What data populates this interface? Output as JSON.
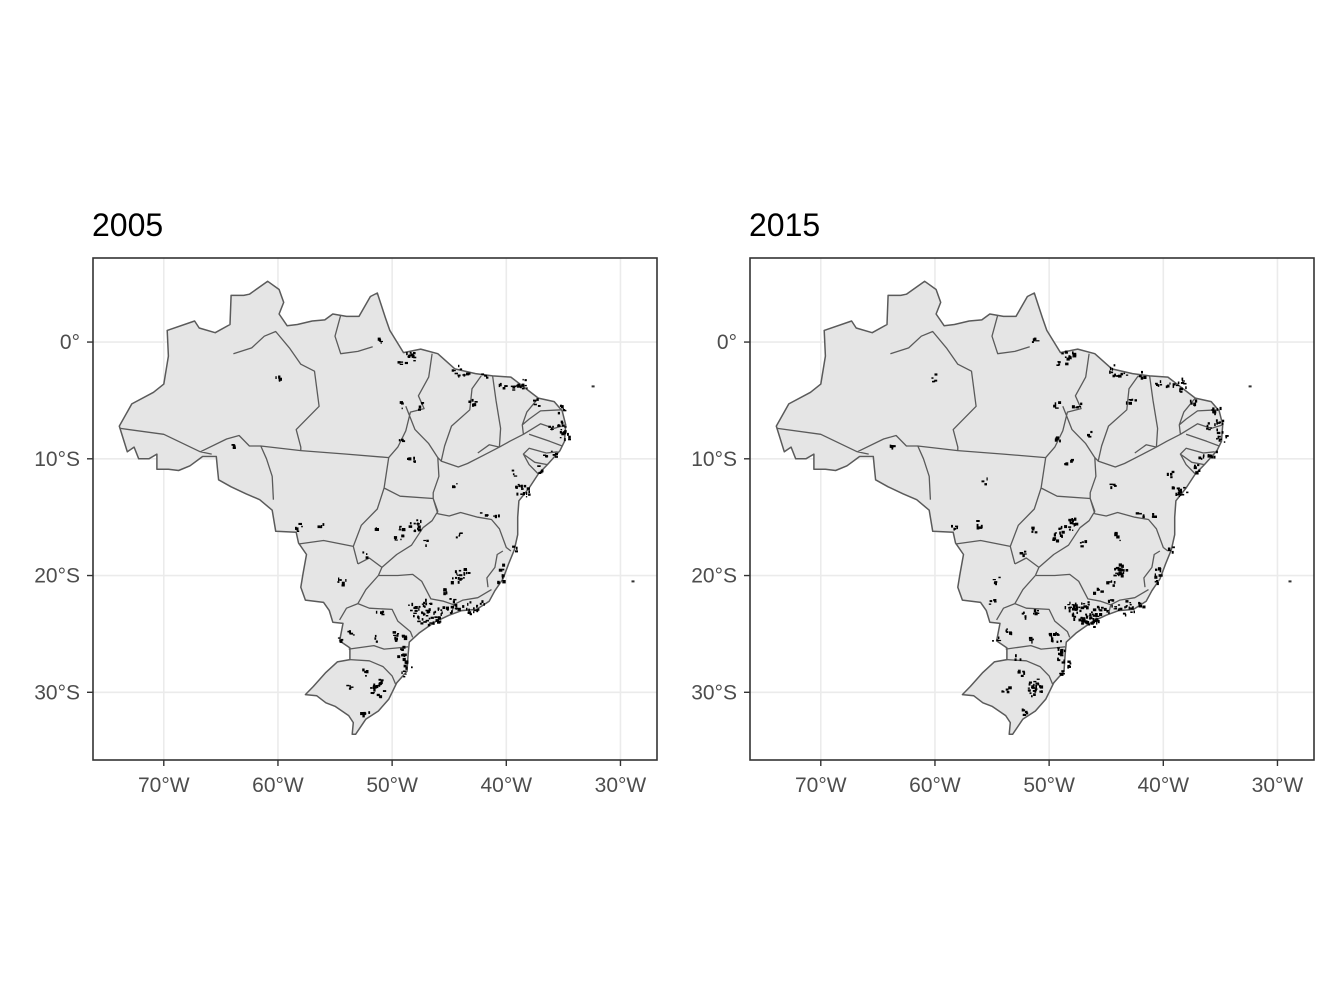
{
  "panels": [
    {
      "id": "2005",
      "title": "2005",
      "x_ticks": [
        {
          "lon": -70,
          "label": "70°W"
        },
        {
          "lon": -60,
          "label": "60°W"
        },
        {
          "lon": -50,
          "label": "50°W"
        },
        {
          "lon": -40,
          "label": "40°W"
        },
        {
          "lon": -30,
          "label": "30°W"
        }
      ],
      "y_ticks": [
        {
          "lat": 0,
          "label": "0°"
        },
        {
          "lat": -10,
          "label": "10°S"
        },
        {
          "lat": -20,
          "label": "20°S"
        },
        {
          "lat": -30,
          "label": "30°S"
        }
      ],
      "xlim": [
        -76.2,
        -26.8
      ],
      "ylim": [
        -35.8,
        7.2
      ],
      "clusters": [
        [
          -58.2,
          -15.9,
          0.5
        ],
        [
          -56.3,
          -15.6,
          0.4
        ],
        [
          -54.6,
          -20.4,
          0.4
        ],
        [
          -54.2,
          -20.6,
          0.3
        ],
        [
          -49.3,
          -16.7,
          0.8
        ],
        [
          -49.0,
          -16.0,
          0.5
        ],
        [
          -48.0,
          -15.8,
          1.0
        ],
        [
          -47.8,
          -15.6,
          0.6
        ],
        [
          -51.2,
          -16.1,
          0.3
        ],
        [
          -52.3,
          -18.2,
          0.3
        ],
        [
          -47.0,
          -17.2,
          0.3
        ],
        [
          -44.0,
          -16.7,
          0.4
        ],
        [
          -44.0,
          -19.9,
          1.1
        ],
        [
          -43.6,
          -19.6,
          0.6
        ],
        [
          -44.5,
          -20.5,
          0.4
        ],
        [
          -45.5,
          -21.5,
          0.5
        ],
        [
          -46.6,
          -23.5,
          1.6
        ],
        [
          -47.2,
          -23.6,
          1.0
        ],
        [
          -46.2,
          -23.9,
          1.0
        ],
        [
          -47.8,
          -23.2,
          0.7
        ],
        [
          -48.2,
          -22.7,
          0.5
        ],
        [
          -47.5,
          -22.5,
          0.6
        ],
        [
          -46.8,
          -22.3,
          0.4
        ],
        [
          -45.7,
          -23.1,
          0.7
        ],
        [
          -45.0,
          -22.9,
          0.5
        ],
        [
          -44.2,
          -22.6,
          0.5
        ],
        [
          -43.3,
          -22.8,
          1.1
        ],
        [
          -42.7,
          -22.8,
          0.6
        ],
        [
          -41.9,
          -22.4,
          0.4
        ],
        [
          -40.4,
          -20.3,
          0.7
        ],
        [
          -40.3,
          -19.4,
          0.3
        ],
        [
          -49.3,
          -25.4,
          0.9
        ],
        [
          -49.6,
          -25.1,
          0.4
        ],
        [
          -51.4,
          -25.4,
          0.3
        ],
        [
          -53.5,
          -24.9,
          0.4
        ],
        [
          -51.1,
          -23.3,
          0.5
        ],
        [
          -49.0,
          -26.5,
          0.6
        ],
        [
          -48.6,
          -27.6,
          0.7
        ],
        [
          -49.1,
          -26.9,
          0.5
        ],
        [
          -48.9,
          -28.5,
          0.4
        ],
        [
          -51.2,
          -29.9,
          1.2
        ],
        [
          -51.2,
          -29.2,
          0.7
        ],
        [
          -51.6,
          -29.7,
          0.6
        ],
        [
          -52.4,
          -28.3,
          0.4
        ],
        [
          -53.8,
          -29.7,
          0.4
        ],
        [
          -52.3,
          -31.8,
          0.5
        ],
        [
          -54.6,
          -25.5,
          0.3
        ],
        [
          -38.5,
          -12.9,
          1.1
        ],
        [
          -38.9,
          -12.3,
          0.5
        ],
        [
          -39.4,
          -11.3,
          0.3
        ],
        [
          -37.1,
          -10.9,
          0.5
        ],
        [
          -35.7,
          -9.6,
          0.6
        ],
        [
          -34.9,
          -8.1,
          1.0
        ],
        [
          -35.0,
          -7.1,
          0.8
        ],
        [
          -35.9,
          -7.2,
          0.4
        ],
        [
          -35.2,
          -5.8,
          0.7
        ],
        [
          -37.3,
          -5.2,
          0.4
        ],
        [
          -38.5,
          -3.7,
          1.0
        ],
        [
          -39.3,
          -3.9,
          0.5
        ],
        [
          -40.3,
          -3.7,
          0.4
        ],
        [
          -44.3,
          -2.5,
          0.8
        ],
        [
          -43.5,
          -2.9,
          0.4
        ],
        [
          -42.8,
          -5.1,
          0.6
        ],
        [
          -41.8,
          -2.9,
          0.3
        ],
        [
          -48.5,
          -1.4,
          0.9
        ],
        [
          -48.0,
          -1.2,
          0.4
        ],
        [
          -49.2,
          -1.9,
          0.3
        ],
        [
          -51.1,
          0.0,
          0.4
        ],
        [
          -47.5,
          -5.5,
          0.4
        ],
        [
          -48.3,
          -10.2,
          0.5
        ],
        [
          -49.3,
          -8.5,
          0.3
        ],
        [
          -44.5,
          -12.2,
          0.3
        ],
        [
          -36.6,
          -9.8,
          0.3
        ],
        [
          -42.0,
          -14.8,
          0.3
        ],
        [
          -40.9,
          -14.8,
          0.3
        ],
        [
          -39.3,
          -17.8,
          0.3
        ],
        [
          -60.0,
          -3.1,
          0.4
        ],
        [
          -63.9,
          -8.8,
          0.3
        ],
        [
          -49.2,
          -5.4,
          0.3
        ],
        [
          -44.6,
          -22.0,
          0.3
        ]
      ]
    },
    {
      "id": "2015",
      "title": "2015",
      "x_ticks": [
        {
          "lon": -70,
          "label": "70°W"
        },
        {
          "lon": -60,
          "label": "60°W"
        },
        {
          "lon": -50,
          "label": "50°W"
        },
        {
          "lon": -40,
          "label": "40°W"
        },
        {
          "lon": -30,
          "label": "30°W"
        }
      ],
      "y_ticks": [
        {
          "lat": 0,
          "label": "0°"
        },
        {
          "lat": -10,
          "label": "10°S"
        },
        {
          "lat": -20,
          "label": "20°S"
        },
        {
          "lat": -30,
          "label": "30°S"
        }
      ],
      "xlim": [
        -76.2,
        -26.8
      ],
      "ylim": [
        -35.8,
        7.2
      ],
      "clusters": [
        [
          -58.2,
          -15.9,
          0.5
        ],
        [
          -56.1,
          -15.6,
          0.5
        ],
        [
          -54.6,
          -20.4,
          0.5
        ],
        [
          -55.0,
          -22.3,
          0.4
        ],
        [
          -49.3,
          -16.7,
          0.9
        ],
        [
          -49.0,
          -16.0,
          0.6
        ],
        [
          -48.0,
          -15.8,
          1.1
        ],
        [
          -47.8,
          -15.4,
          0.7
        ],
        [
          -51.2,
          -16.1,
          0.4
        ],
        [
          -52.3,
          -18.2,
          0.4
        ],
        [
          -47.0,
          -17.2,
          0.4
        ],
        [
          -44.0,
          -16.7,
          0.5
        ],
        [
          -44.0,
          -19.9,
          1.3
        ],
        [
          -43.6,
          -19.5,
          0.7
        ],
        [
          -44.6,
          -20.7,
          0.6
        ],
        [
          -45.7,
          -21.3,
          0.6
        ],
        [
          -46.6,
          -23.5,
          1.9
        ],
        [
          -47.2,
          -23.6,
          1.2
        ],
        [
          -46.2,
          -23.9,
          1.1
        ],
        [
          -47.8,
          -23.2,
          0.9
        ],
        [
          -48.2,
          -22.7,
          0.7
        ],
        [
          -47.5,
          -22.6,
          0.8
        ],
        [
          -46.8,
          -22.3,
          0.6
        ],
        [
          -45.7,
          -23.1,
          0.8
        ],
        [
          -45.0,
          -22.9,
          0.6
        ],
        [
          -44.2,
          -22.6,
          0.6
        ],
        [
          -43.3,
          -22.8,
          1.3
        ],
        [
          -42.7,
          -22.8,
          0.7
        ],
        [
          -41.9,
          -22.4,
          0.5
        ],
        [
          -40.4,
          -20.3,
          0.8
        ],
        [
          -40.3,
          -19.4,
          0.4
        ],
        [
          -49.3,
          -25.4,
          1.0
        ],
        [
          -49.6,
          -25.1,
          0.5
        ],
        [
          -51.4,
          -25.4,
          0.4
        ],
        [
          -53.5,
          -24.9,
          0.5
        ],
        [
          -51.1,
          -23.3,
          0.6
        ],
        [
          -52.0,
          -23.4,
          0.4
        ],
        [
          -49.0,
          -26.5,
          0.7
        ],
        [
          -48.6,
          -27.6,
          0.8
        ],
        [
          -49.1,
          -26.9,
          0.6
        ],
        [
          -48.9,
          -28.5,
          0.5
        ],
        [
          -51.2,
          -29.9,
          1.4
        ],
        [
          -51.2,
          -29.2,
          0.9
        ],
        [
          -51.6,
          -29.7,
          0.7
        ],
        [
          -52.4,
          -28.3,
          0.5
        ],
        [
          -53.8,
          -29.7,
          0.5
        ],
        [
          -52.3,
          -31.8,
          0.6
        ],
        [
          -54.6,
          -25.5,
          0.4
        ],
        [
          -52.7,
          -27.1,
          0.4
        ],
        [
          -38.5,
          -12.9,
          1.2
        ],
        [
          -38.9,
          -12.3,
          0.6
        ],
        [
          -39.4,
          -11.3,
          0.4
        ],
        [
          -37.1,
          -10.9,
          0.6
        ],
        [
          -35.7,
          -9.6,
          0.7
        ],
        [
          -34.9,
          -8.1,
          1.1
        ],
        [
          -35.0,
          -7.1,
          0.9
        ],
        [
          -35.9,
          -7.2,
          0.5
        ],
        [
          -35.2,
          -5.8,
          0.8
        ],
        [
          -37.3,
          -5.2,
          0.5
        ],
        [
          -38.5,
          -3.7,
          1.1
        ],
        [
          -39.3,
          -3.9,
          0.6
        ],
        [
          -40.3,
          -3.7,
          0.5
        ],
        [
          -44.3,
          -2.5,
          0.9
        ],
        [
          -43.5,
          -2.9,
          0.5
        ],
        [
          -42.8,
          -5.1,
          0.7
        ],
        [
          -41.8,
          -2.9,
          0.4
        ],
        [
          -48.5,
          -1.4,
          1.0
        ],
        [
          -48.0,
          -1.2,
          0.5
        ],
        [
          -49.2,
          -1.9,
          0.4
        ],
        [
          -51.1,
          0.0,
          0.5
        ],
        [
          -47.5,
          -5.5,
          0.5
        ],
        [
          -48.3,
          -10.2,
          0.6
        ],
        [
          -49.3,
          -8.5,
          0.4
        ],
        [
          -44.5,
          -12.2,
          0.4
        ],
        [
          -36.6,
          -9.8,
          0.4
        ],
        [
          -42.0,
          -14.8,
          0.4
        ],
        [
          -40.9,
          -14.8,
          0.4
        ],
        [
          -39.3,
          -17.8,
          0.4
        ],
        [
          -60.0,
          -3.1,
          0.5
        ],
        [
          -63.9,
          -8.8,
          0.4
        ],
        [
          -55.5,
          -11.9,
          0.3
        ],
        [
          -49.2,
          -5.4,
          0.4
        ],
        [
          -44.6,
          -22.0,
          0.4
        ],
        [
          -46.3,
          -8.0,
          0.3
        ]
      ]
    }
  ],
  "islands": [
    {
      "lon": -32.4,
      "lat": -3.8
    },
    {
      "lon": -28.9,
      "lat": -20.5
    }
  ]
}
